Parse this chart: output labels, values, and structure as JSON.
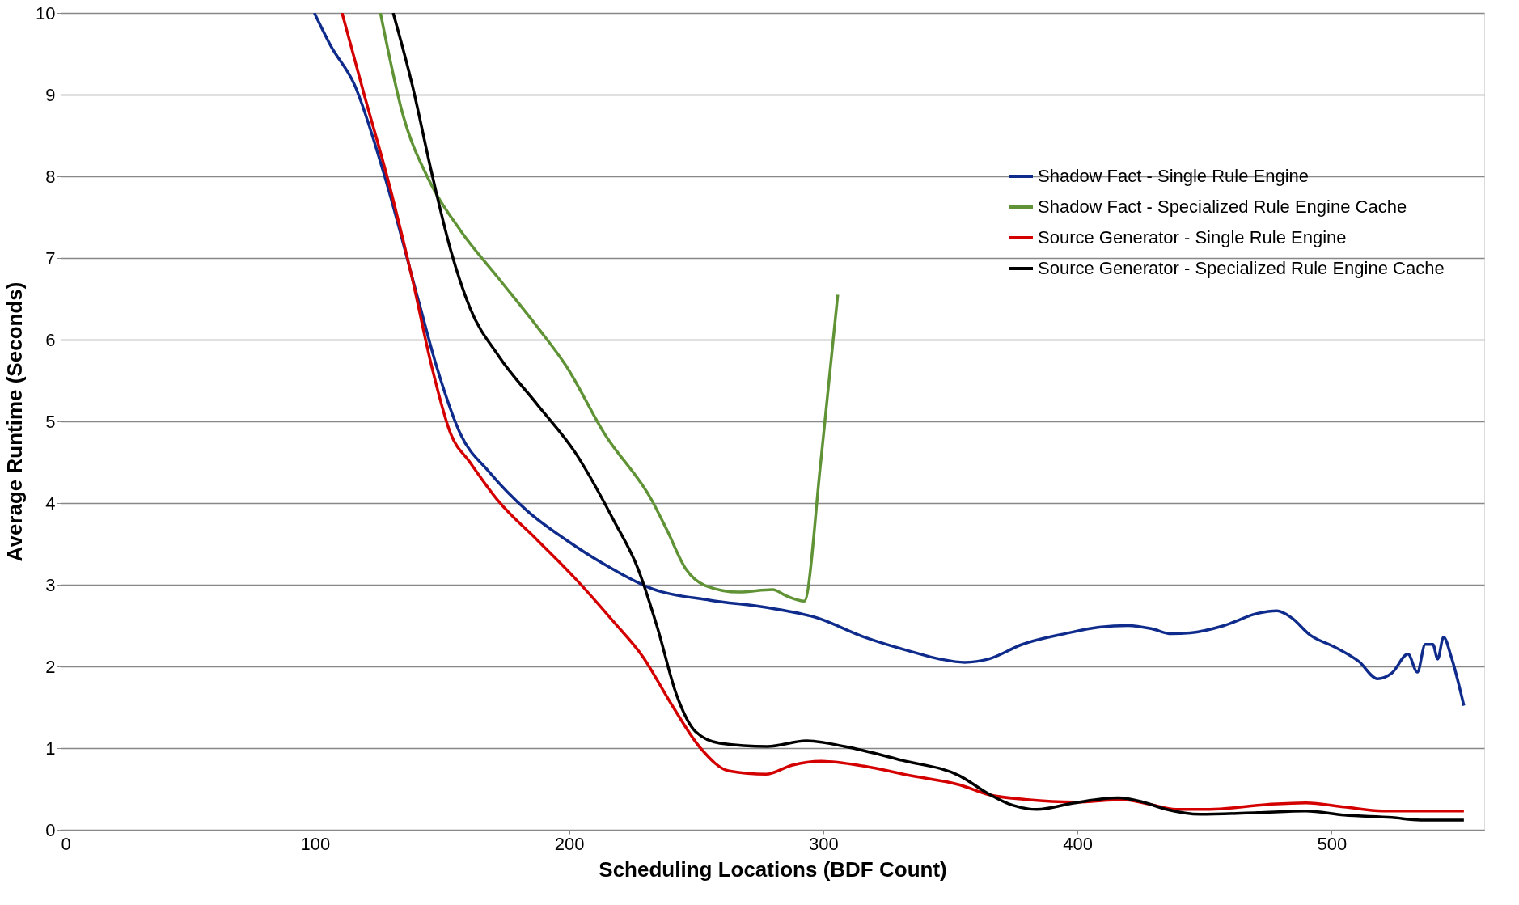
{
  "chart_data": {
    "type": "line",
    "xlabel": "Scheduling Locations (BDF Count)",
    "ylabel": "Average Runtime (Seconds)",
    "xlim": [
      0,
      560
    ],
    "ylim": [
      0,
      10
    ],
    "xticks": [
      0,
      100,
      200,
      300,
      400,
      500
    ],
    "yticks": [
      0,
      1,
      2,
      3,
      4,
      5,
      6,
      7,
      8,
      9,
      10
    ],
    "grid": "y",
    "legend": "top right",
    "marker": "none",
    "line_style": "solid",
    "series": [
      {
        "name": "Shadow Fact - Single Rule Engine",
        "color": "#0f2c8c",
        "x": [
          99.8,
          106.2,
          115.6,
          127,
          141,
          147.8,
          157.2,
          168.6,
          183.7,
          198.8,
          213.9,
          232.8,
          255.5,
          278,
          297,
          316,
          334.8,
          346,
          355.6,
          365,
          378.3,
          395,
          408.5,
          419.9,
          429.3,
          436.9,
          444.4,
          457.7,
          470.9,
          478.5,
          484,
          491.7,
          501,
          510.7,
          518,
          523.7,
          530,
          533.7,
          536.8,
          539.8,
          541.7,
          544,
          547,
          552
        ],
        "values": [
          10,
          9.6,
          9.12,
          8.05,
          6.45,
          5.68,
          4.85,
          4.38,
          3.9,
          3.55,
          3.25,
          2.95,
          2.81,
          2.72,
          2.6,
          2.36,
          2.18,
          2.09,
          2.05,
          2.09,
          2.27,
          2.4,
          2.48,
          2.5,
          2.46,
          2.4,
          2.41,
          2.5,
          2.65,
          2.68,
          2.6,
          2.38,
          2.24,
          2.06,
          1.85,
          1.92,
          2.15,
          1.93,
          2.27,
          2.27,
          2.09,
          2.36,
          2.12,
          1.52
        ]
      },
      {
        "name": "Shadow Fact - Specialized Rule Engine Cache",
        "color": "#5f9335",
        "x": [
          125.8,
          134.5,
          145.1,
          157.2,
          172.3,
          187.4,
          198.8,
          213.9,
          232.8,
          238.5,
          246,
          253.6,
          266.8,
          280,
          285.7,
          292.5,
          299,
          305.7
        ],
        "values": [
          10,
          8.77,
          7.94,
          7.34,
          6.75,
          6.16,
          5.68,
          4.85,
          4.02,
          3.67,
          3.19,
          2.99,
          2.91,
          2.94,
          2.86,
          2.8,
          4.5,
          6.55
        ]
      },
      {
        "name": "Source Generator - Single Rule Engine",
        "color": "#d40000",
        "x": [
          110.7,
          119.4,
          128.9,
          138.3,
          145.9,
          153.4,
          161,
          172.3,
          187.4,
          202.6,
          217.7,
          229,
          240.4,
          251.7,
          263,
          277.4,
          287.6,
          299,
          316,
          334.8,
          353.7,
          365,
          380,
          399,
          418,
          427.4,
          438.8,
          452,
          474.7,
          489.8,
          504.9,
          520,
          552
        ],
        "values": [
          10,
          9.0,
          7.94,
          6.75,
          5.68,
          4.85,
          4.5,
          4.02,
          3.55,
          3.07,
          2.54,
          2.12,
          1.53,
          1.0,
          0.72,
          0.68,
          0.79,
          0.84,
          0.78,
          0.66,
          0.55,
          0.43,
          0.37,
          0.34,
          0.37,
          0.32,
          0.25,
          0.25,
          0.31,
          0.33,
          0.28,
          0.23,
          0.23
        ]
      },
      {
        "name": "Source Generator - Specialized Rule Engine Cache",
        "color": "#000000",
        "x": [
          130.8,
          138.3,
          145.9,
          153.4,
          161,
          172.3,
          187.4,
          202.6,
          217.7,
          227.2,
          234.7,
          242.3,
          249.8,
          259.3,
          278,
          293.3,
          308.4,
          331,
          353.7,
          365,
          374.5,
          384,
          399,
          416,
          425.6,
          435,
          448.2,
          470.9,
          489.8,
          504.9,
          523.7,
          535,
          552
        ],
        "values": [
          10,
          9.12,
          8.05,
          7.1,
          6.39,
          5.8,
          5.21,
          4.61,
          3.78,
          3.19,
          2.48,
          1.65,
          1.2,
          1.06,
          1.02,
          1.09,
          1.02,
          0.85,
          0.66,
          0.44,
          0.3,
          0.25,
          0.33,
          0.39,
          0.34,
          0.25,
          0.19,
          0.21,
          0.23,
          0.18,
          0.15,
          0.12,
          0.12
        ]
      }
    ]
  }
}
